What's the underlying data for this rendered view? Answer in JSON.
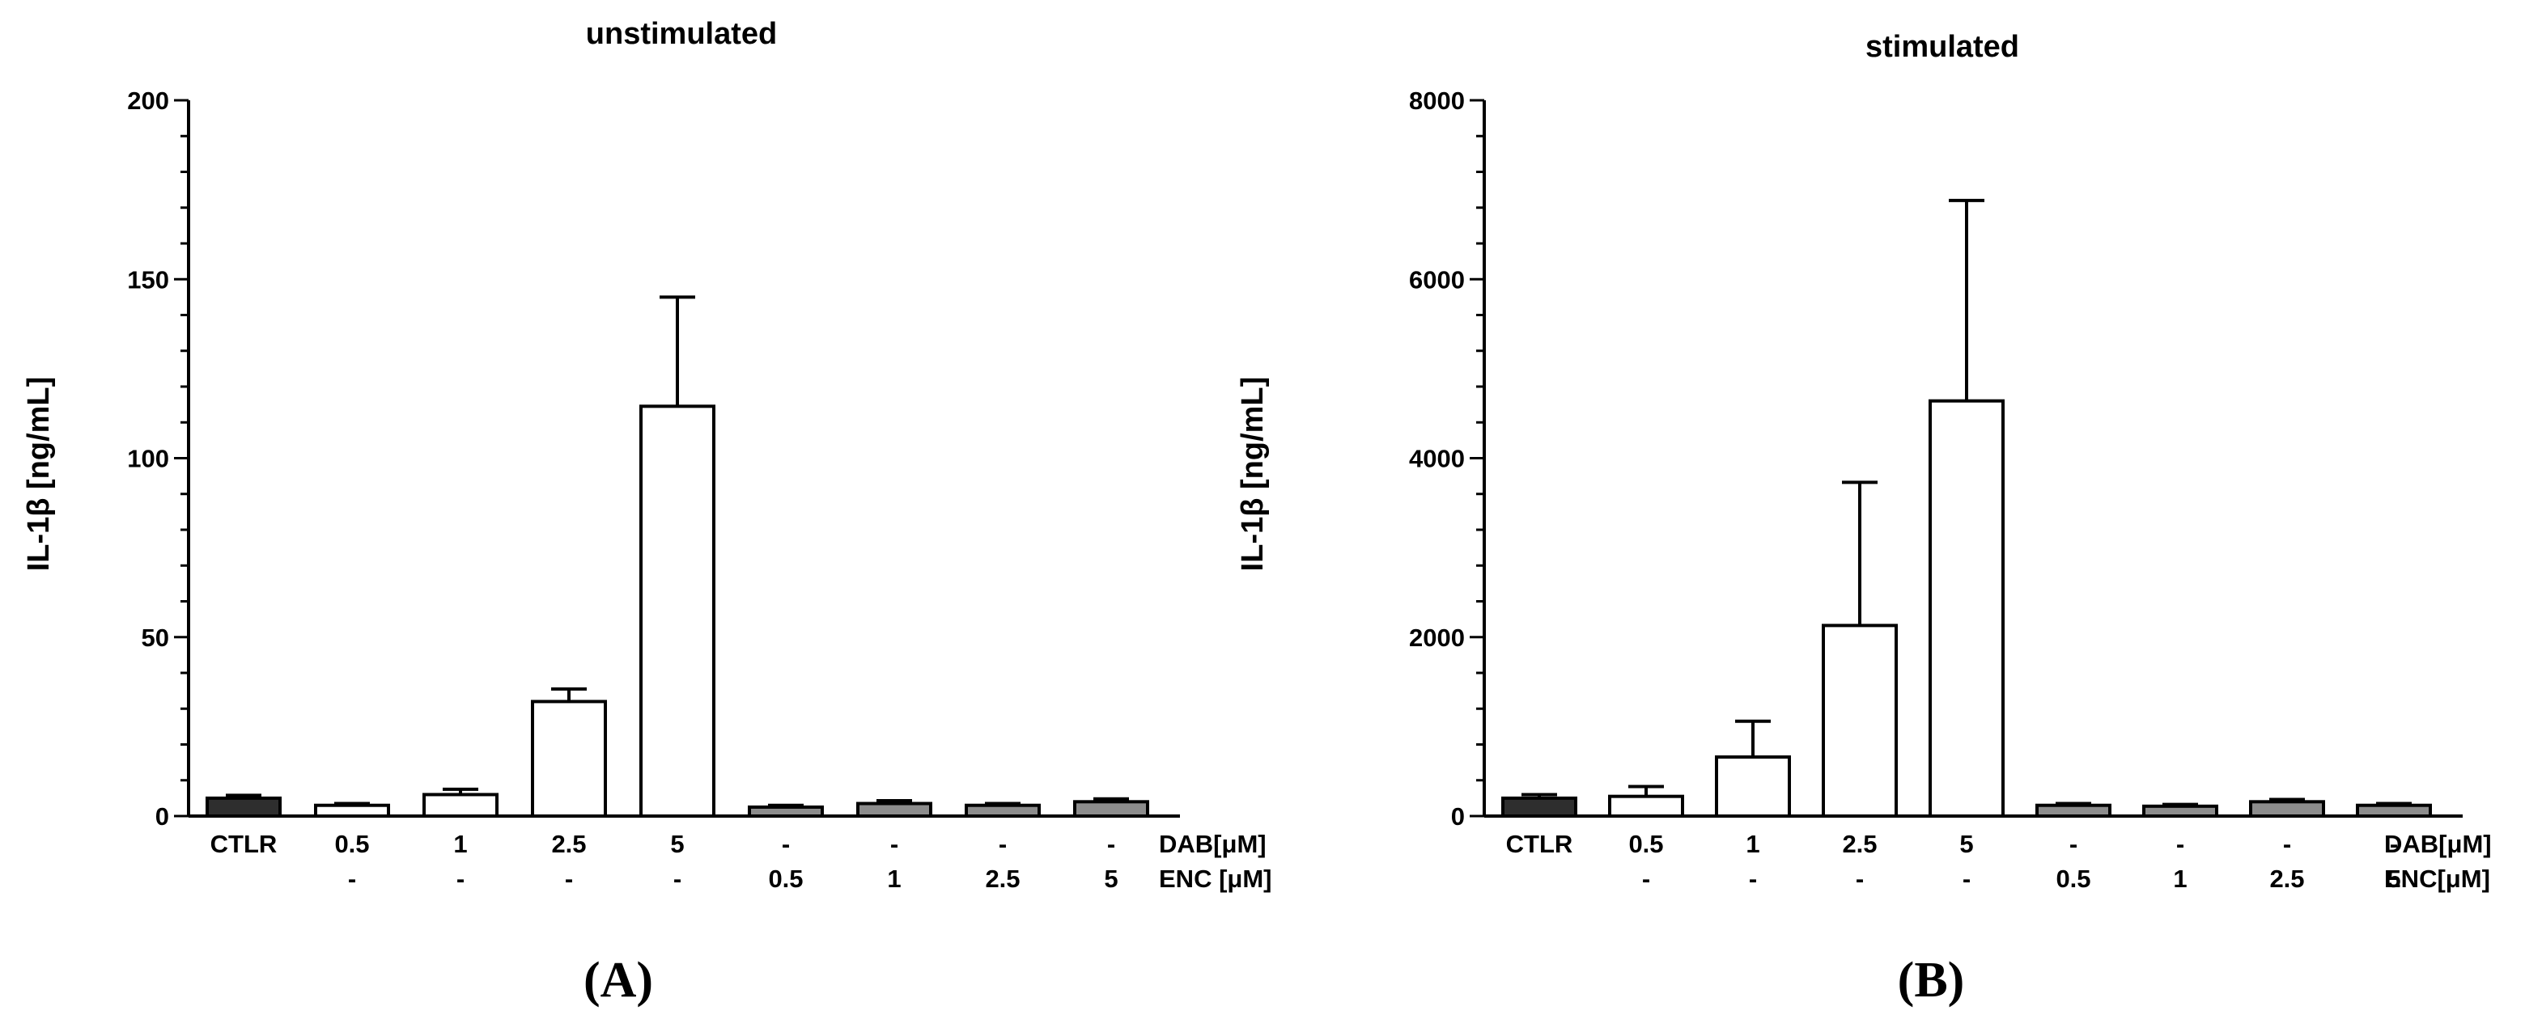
{
  "chart_data": [
    {
      "type": "bar",
      "panel_label": "(A)",
      "title": "unstimulated",
      "ylabel": "IL-1β [ng/mL]",
      "ylim": [
        0,
        200
      ],
      "yticks": [
        0,
        50,
        100,
        150,
        200
      ],
      "categories": [
        "CTLR",
        "0.5",
        "1",
        "2.5",
        "5",
        "-",
        "-",
        "-",
        "-"
      ],
      "row1_label": "DAB[μM]",
      "row2": [
        "",
        "-",
        "-",
        "-",
        "-",
        "0.5",
        "1",
        "2.5",
        "5"
      ],
      "row2_label": "ENC [μM]",
      "values": [
        5,
        3,
        6,
        32,
        114.5,
        2.5,
        3.5,
        3,
        4
      ],
      "errors": [
        0.8,
        0.5,
        1.5,
        3.5,
        30.5,
        0.5,
        0.8,
        0.5,
        0.8
      ],
      "fills": [
        "#2e2e2e",
        "#ffffff",
        "#ffffff",
        "#ffffff",
        "#ffffff",
        "#8c8c8c",
        "#8c8c8c",
        "#8c8c8c",
        "#8c8c8c"
      ]
    },
    {
      "type": "bar",
      "panel_label": "(B)",
      "title": "stimulated",
      "ylabel": "IL-1β [ng/mL]",
      "ylim": [
        0,
        8000
      ],
      "yticks": [
        0,
        2000,
        4000,
        6000,
        8000
      ],
      "categories": [
        "CTLR",
        "0.5",
        "1",
        "2.5",
        "5",
        "-",
        "-",
        "-",
        "-"
      ],
      "row1_label": "DAB[μM]",
      "row2": [
        "",
        "-",
        "-",
        "-",
        "-",
        "0.5",
        "1",
        "2.5",
        "5"
      ],
      "row2_label": "ENC[μM]",
      "values": [
        200,
        220,
        660,
        2130,
        4640,
        120,
        110,
        160,
        120
      ],
      "errors": [
        40,
        110,
        400,
        1600,
        2240,
        20,
        20,
        25,
        20
      ],
      "fills": [
        "#2e2e2e",
        "#ffffff",
        "#ffffff",
        "#ffffff",
        "#ffffff",
        "#8c8c8c",
        "#8c8c8c",
        "#8c8c8c",
        "#8c8c8c"
      ]
    }
  ]
}
